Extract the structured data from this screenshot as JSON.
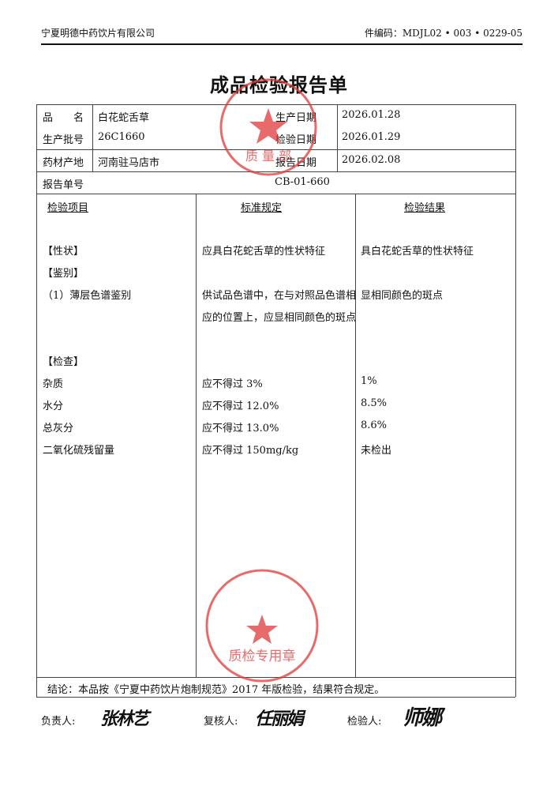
{
  "header": {
    "company": "宁夏明德中药饮片有限公司",
    "doc_code": "件编码：MDJL02 • 003 • 0229-05"
  },
  "title": "成品检验报告单",
  "info": {
    "name_label": "品　　名",
    "name": "白花蛇舌草",
    "batch_label": "生产批号",
    "batch": "26C1660",
    "origin_label": "药材产地",
    "origin": "河南驻马店市",
    "prod_date_label": "生产日期",
    "prod_date": "2026.01.28",
    "test_date_label": "检验日期",
    "test_date": "2026.01.29",
    "report_date_label": "报告日期",
    "report_date": "2026.02.08",
    "report_no_label": "报告单号",
    "report_no": "CB-01-660"
  },
  "columns": [
    "检验项目",
    "标准规定",
    "检验结果"
  ],
  "rows": [
    {
      "item": "【性状】",
      "standard": "应具白花蛇舌草的性状特征",
      "result": "具白花蛇舌草的性状特征"
    },
    {
      "item": "【鉴别】",
      "standard": "",
      "result": ""
    },
    {
      "item": "（1）薄层色谱鉴别",
      "standard": "供试品色谱中，在与对照品色谱相",
      "result": "显相同颜色的斑点"
    },
    {
      "item": "",
      "standard": "应的位置上，应显相同颜色的斑点",
      "result": ""
    },
    {
      "item": "【检查】",
      "standard": "",
      "result": ""
    },
    {
      "item": "杂质",
      "standard": "应不得过 3%",
      "result": "1%"
    },
    {
      "item": "水分",
      "standard": "应不得过 12.0%",
      "result": "8.5%"
    },
    {
      "item": "总灰分",
      "standard": "应不得过 13.0%",
      "result": "8.6%"
    },
    {
      "item": "二氧化硫残留量",
      "standard": "应不得过 150mg/kg",
      "result": "未检出"
    }
  ],
  "conclusion": "结论：本品按《宁夏中药饮片炮制规范》2017 年版检验，结果符合规定。",
  "signatures": {
    "responsible_label": "负责人:",
    "responsible": "张林艺",
    "reviewer_label": "复核人:",
    "reviewer": "任丽娟",
    "inspector_label": "检验人:",
    "inspector": "师娜"
  },
  "stamps": {
    "top": "宁夏明德中药饮片有限公司 质量部",
    "bottom": "宁夏明德中药饮片有限公司 质检专用章",
    "color": "#e03a3a"
  }
}
